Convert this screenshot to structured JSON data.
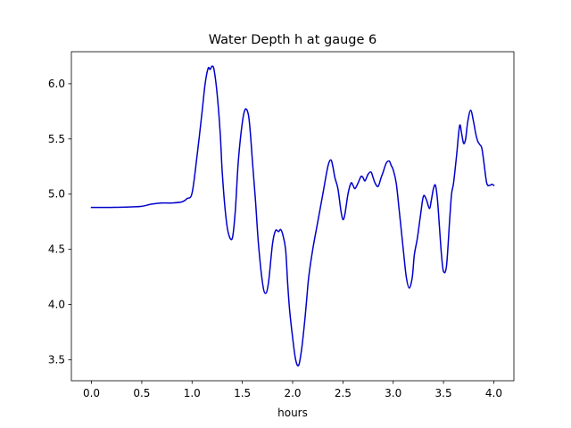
{
  "chart_data": {
    "type": "line",
    "title": "Water Depth h at gauge 6",
    "xlabel": "hours",
    "ylabel": "",
    "xlim": [
      -0.2,
      4.2
    ],
    "ylim": [
      3.31,
      6.29
    ],
    "xticks": [
      0.0,
      0.5,
      1.0,
      1.5,
      2.0,
      2.5,
      3.0,
      3.5,
      4.0
    ],
    "xtick_labels": [
      "0.0",
      "0.5",
      "1.0",
      "1.5",
      "2.0",
      "2.5",
      "3.0",
      "3.5",
      "4.0"
    ],
    "yticks": [
      3.5,
      4.0,
      4.5,
      5.0,
      5.5,
      6.0
    ],
    "ytick_labels": [
      "3.5",
      "4.0",
      "4.5",
      "5.0",
      "5.5",
      "6.0"
    ],
    "grid": false,
    "series": [
      {
        "color": "#0000cc",
        "x": [
          0.0,
          0.2,
          0.4,
          0.5,
          0.6,
          0.7,
          0.8,
          0.9,
          0.95,
          1.0,
          1.05,
          1.1,
          1.13,
          1.16,
          1.18,
          1.2,
          1.22,
          1.25,
          1.28,
          1.3,
          1.33,
          1.36,
          1.4,
          1.43,
          1.46,
          1.5,
          1.53,
          1.56,
          1.58,
          1.6,
          1.63,
          1.66,
          1.7,
          1.73,
          1.76,
          1.8,
          1.83,
          1.86,
          1.88,
          1.9,
          1.93,
          1.95,
          1.97,
          2.0,
          2.03,
          2.06,
          2.09,
          2.12,
          2.14,
          2.16,
          2.2,
          2.25,
          2.3,
          2.35,
          2.38,
          2.4,
          2.42,
          2.45,
          2.48,
          2.5,
          2.52,
          2.55,
          2.58,
          2.6,
          2.62,
          2.65,
          2.68,
          2.7,
          2.72,
          2.75,
          2.78,
          2.8,
          2.82,
          2.85,
          2.88,
          2.9,
          2.93,
          2.96,
          2.98,
          3.0,
          3.03,
          3.06,
          3.1,
          3.13,
          3.16,
          3.19,
          3.21,
          3.24,
          3.27,
          3.3,
          3.33,
          3.36,
          3.38,
          3.4,
          3.42,
          3.44,
          3.46,
          3.48,
          3.5,
          3.53,
          3.56,
          3.58,
          3.6,
          3.63,
          3.66,
          3.68,
          3.7,
          3.72,
          3.74,
          3.77,
          3.8,
          3.82,
          3.84,
          3.86,
          3.88,
          3.9,
          3.93,
          3.96,
          3.98,
          4.0
        ],
        "y": [
          4.88,
          4.88,
          4.885,
          4.89,
          4.91,
          4.92,
          4.92,
          4.93,
          4.96,
          5.01,
          5.35,
          5.75,
          6.0,
          6.14,
          6.13,
          6.16,
          6.12,
          5.9,
          5.55,
          5.2,
          4.85,
          4.65,
          4.6,
          4.85,
          5.3,
          5.65,
          5.77,
          5.72,
          5.55,
          5.3,
          4.95,
          4.55,
          4.2,
          4.1,
          4.2,
          4.55,
          4.67,
          4.66,
          4.68,
          4.64,
          4.5,
          4.2,
          3.95,
          3.7,
          3.5,
          3.45,
          3.6,
          3.85,
          4.05,
          4.25,
          4.5,
          4.75,
          5.0,
          5.25,
          5.31,
          5.25,
          5.15,
          5.05,
          4.85,
          4.77,
          4.82,
          5.0,
          5.1,
          5.08,
          5.05,
          5.1,
          5.16,
          5.15,
          5.12,
          5.18,
          5.2,
          5.15,
          5.1,
          5.07,
          5.15,
          5.2,
          5.28,
          5.3,
          5.26,
          5.22,
          5.1,
          4.85,
          4.5,
          4.25,
          4.15,
          4.25,
          4.45,
          4.6,
          4.8,
          4.98,
          4.95,
          4.87,
          4.95,
          5.05,
          5.08,
          4.95,
          4.7,
          4.45,
          4.3,
          4.35,
          4.75,
          5.0,
          5.1,
          5.35,
          5.62,
          5.55,
          5.46,
          5.5,
          5.65,
          5.76,
          5.65,
          5.55,
          5.48,
          5.45,
          5.42,
          5.3,
          5.1,
          5.08,
          5.09,
          5.08
        ]
      }
    ]
  }
}
